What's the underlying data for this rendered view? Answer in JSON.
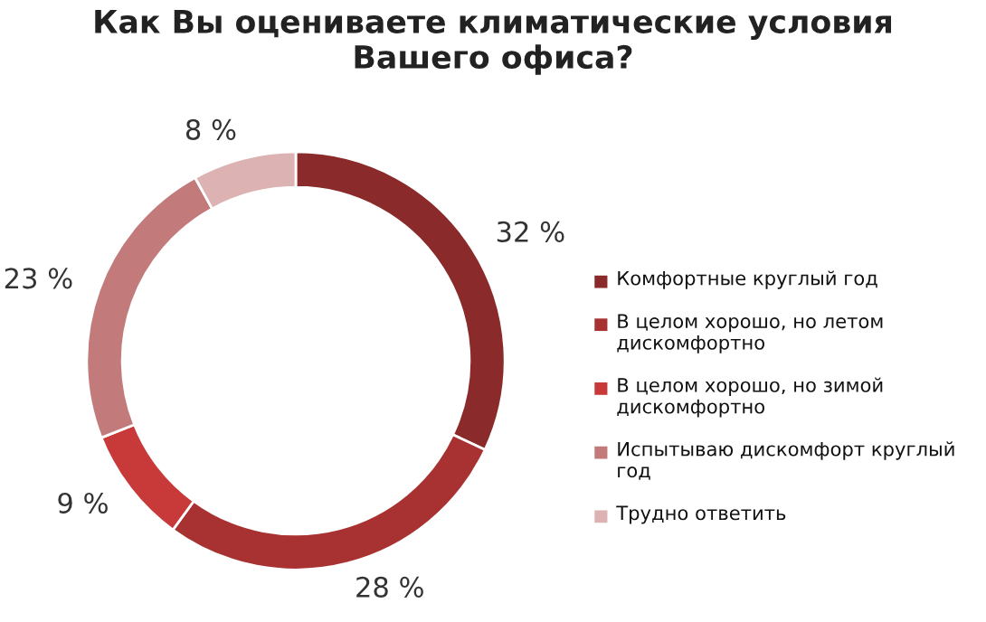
{
  "chart_data": {
    "type": "donut",
    "title": "Как Вы оцениваете климатические условия\nВашего офиса?",
    "categories": [
      "Комфортные круглый год",
      "В целом хорошо, но летом дискомфортно",
      "В целом хорошо, но зимой дискомфортно",
      "Испытываю дискомфорт круглый год",
      "Трудно ответить"
    ],
    "values": [
      32,
      28,
      9,
      23,
      8
    ],
    "value_labels": [
      "32 %",
      "28 %",
      "9 %",
      "23 %",
      "8 %"
    ],
    "colors": [
      "#8b2a2a",
      "#a83232",
      "#c83a3a",
      "#c27a7a",
      "#dcb2b2"
    ],
    "legend": "right"
  }
}
